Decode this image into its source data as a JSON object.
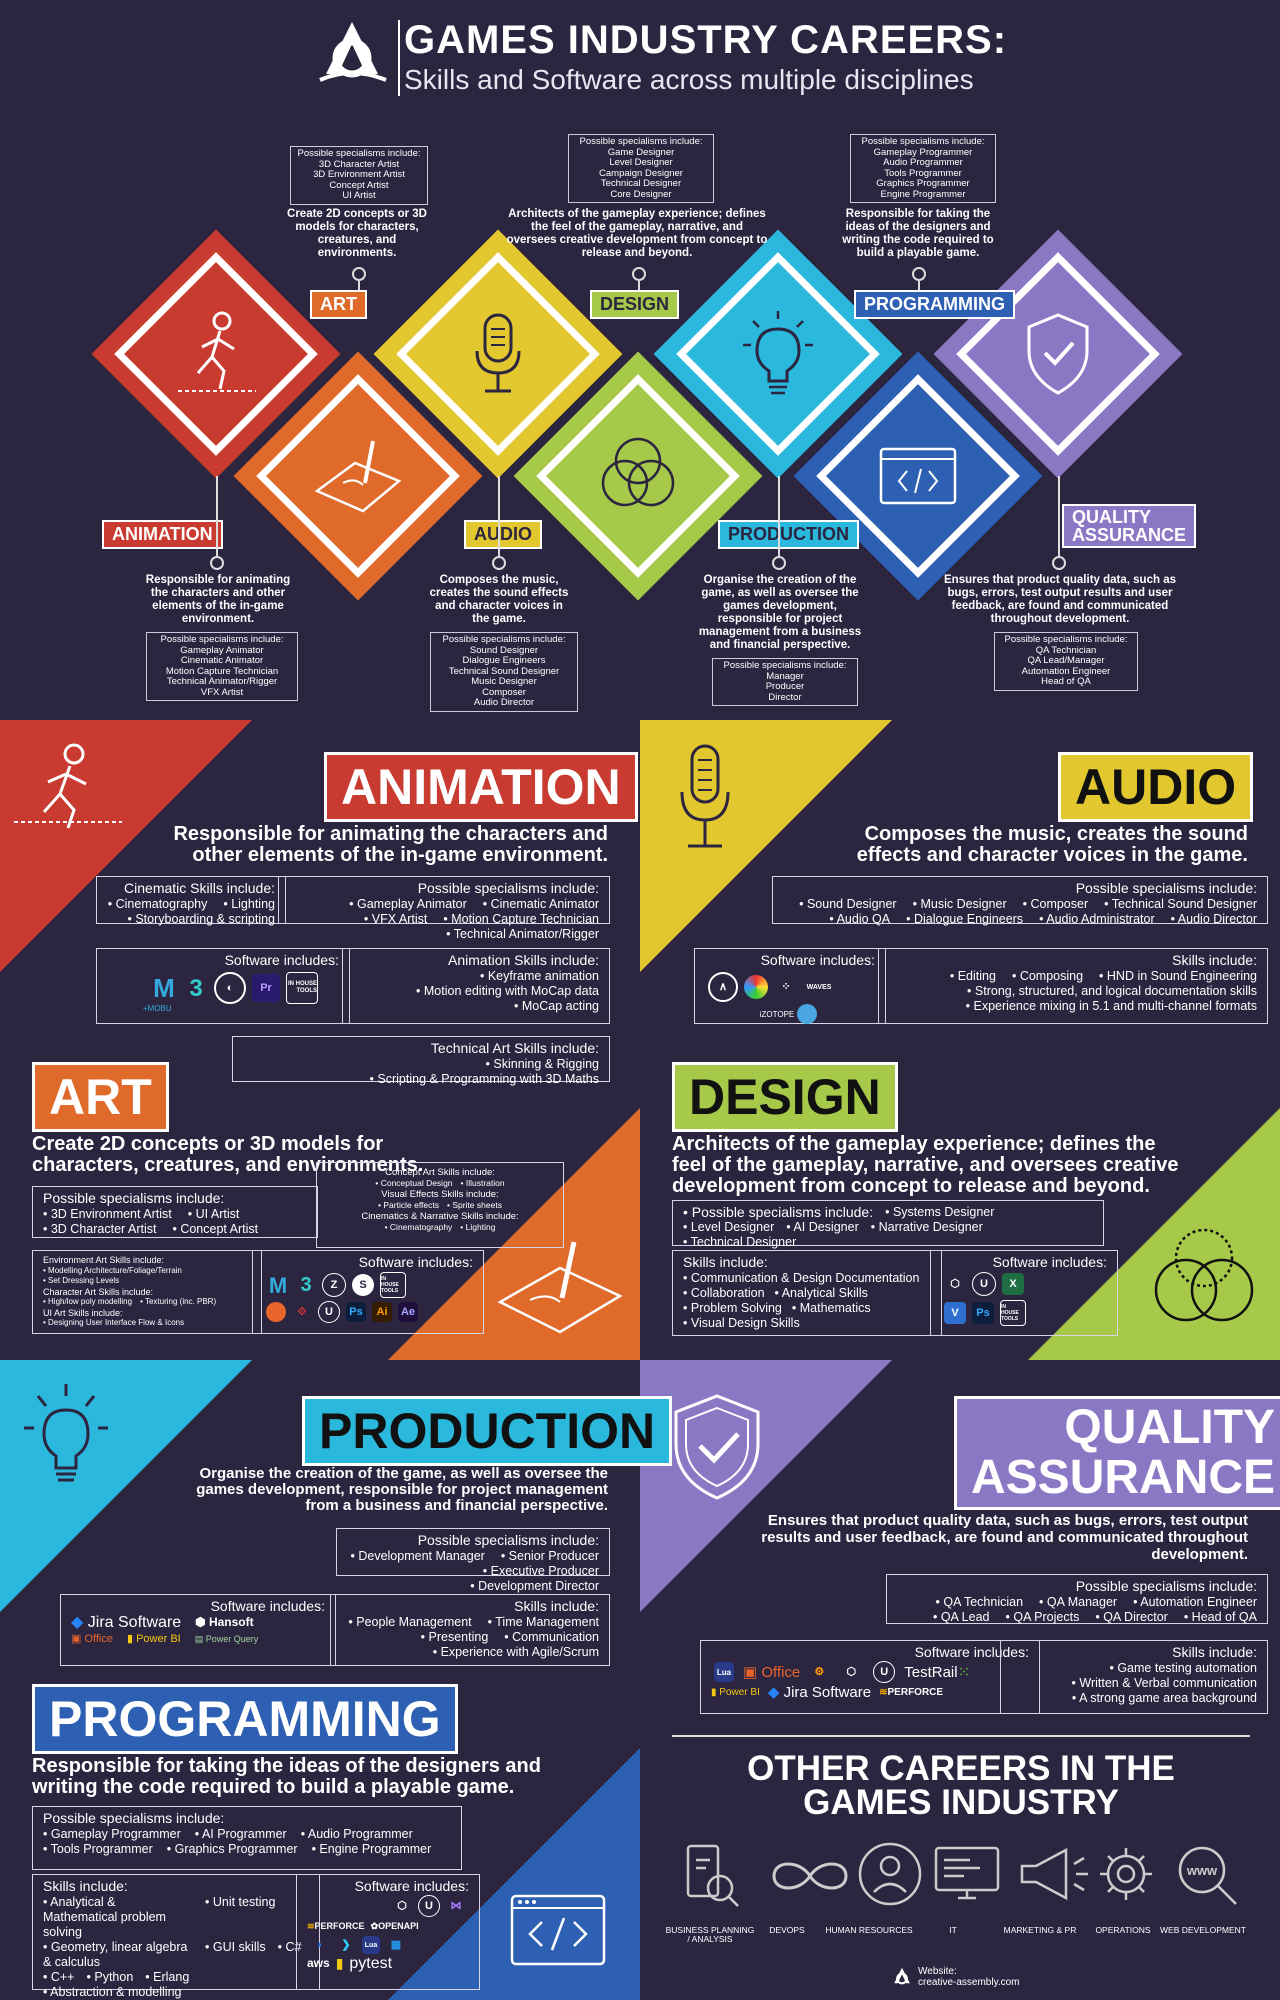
{
  "header": {
    "title": "GAMES INDUSTRY CAREERS:",
    "subtitle": "Skills and Software across multiple disciplines"
  },
  "colors": {
    "background": "#2c2540",
    "animation": "#c93a30",
    "art": "#e06a2a",
    "audio": "#e2c72f",
    "design": "#a6c94a",
    "production": "#2ab8dc",
    "programming": "#2d5fb2",
    "qa": "#8a78c4"
  },
  "top": {
    "art": {
      "label": "ART",
      "desc": "Create 2D concepts or 3D models for characters, creatures, and environments.",
      "spec_head": "Possible specialisms include:",
      "specs": [
        "3D Character Artist",
        "3D Environment Artist",
        "Concept Artist",
        "UI Artist"
      ]
    },
    "design": {
      "label": "DESIGN",
      "desc": "Architects of the gameplay experience; defines the feel of the gameplay, narrative, and oversees creative development from concept to release and beyond.",
      "spec_head": "Possible specialisms include:",
      "specs": [
        "Game Designer",
        "Level Designer",
        "Campaign Designer",
        "Technical Designer",
        "Core Designer"
      ]
    },
    "programming": {
      "label": "PROGRAMMING",
      "desc": "Responsible for taking the ideas of the designers and writing the code required to build a playable game.",
      "spec_head": "Possible specialisms include:",
      "specs": [
        "Gameplay Programmer",
        "Audio Programmer",
        "Tools Programmer",
        "Graphics Programmer",
        "Engine Programmer"
      ]
    },
    "animation": {
      "label": "ANIMATION",
      "desc": "Responsible for animating the characters and other elements of the in-game environment.",
      "spec_head": "Possible specialisms include:",
      "specs": [
        "Gameplay Animator",
        "Cinematic Animator",
        "Motion Capture Technician",
        "Technical Animator/Rigger",
        "VFX Artist"
      ]
    },
    "audio": {
      "label": "AUDIO",
      "desc": "Composes the music, creates the sound effects and character voices in the game.",
      "spec_head": "Possible specialisms include:",
      "specs": [
        "Sound Designer",
        "Dialogue Engineers",
        "Technical Sound Designer",
        "Music Designer",
        "Composer",
        "Audio Director"
      ]
    },
    "production": {
      "label": "PRODUCTION",
      "desc": "Organise the creation of the game, as well as oversee the games development, responsible for project management from a business and financial perspective.",
      "spec_head": "Possible specialisms include:",
      "specs": [
        "Manager",
        "Producer",
        "Director"
      ]
    },
    "qa": {
      "label1": "QUALITY",
      "label2": "ASSURANCE",
      "desc": "Ensures that product quality data, such as bugs, errors, test output results and user feedback, are found and communicated throughout development.",
      "spec_head": "Possible specialisms include:",
      "specs": [
        "QA Technician",
        "QA Lead/Manager",
        "Automation Engineer",
        "Head of QA"
      ]
    }
  },
  "animation": {
    "title": "ANIMATION",
    "lead": "Responsible for animating the characters and other elements of the in-game environment.",
    "cine_head": "Cinematic Skills include:",
    "cine": [
      "Cinematography",
      "Lighting",
      "Storyboarding & scripting"
    ],
    "spec_head": "Possible specialisms include:",
    "specs": [
      "Gameplay Animator",
      "Cinematic Animator",
      "VFX Artist",
      "Motion Capture Technician",
      "Technical Animator/Rigger"
    ],
    "sw_head": "Software includes:",
    "software": [
      "M",
      "3",
      "Pr",
      "IN HOUSE TOOLS"
    ],
    "sw_sub": "+MOBU",
    "anim_head": "Animation Skills include:",
    "anim": [
      "Keyframe animation",
      "Motion editing with MoCap data",
      "MoCap acting"
    ],
    "tech_head": "Technical Art Skills include:",
    "tech": [
      "Skinning & Rigging",
      "Scripting & Programming with 3D Maths"
    ]
  },
  "audio": {
    "title": "AUDIO",
    "lead": "Composes the music, creates the sound effects and character voices in the game.",
    "spec_head": "Possible specialisms include:",
    "specs": [
      "Sound Designer",
      "Music Designer",
      "Composer",
      "Technical Sound Designer",
      "Audio QA",
      "Dialogue Engineers",
      "Audio Administrator",
      "Audio Director"
    ],
    "sw_head": "Software includes:",
    "software": [
      "WAVES",
      "iZOTOPE"
    ],
    "skills_head": "Skills include:",
    "skills": [
      "Editing",
      "Composing",
      "HND in Sound Engineering",
      "Strong, structured, and logical documentation skills",
      "Experience mixing in 5.1 and multi-channel formats"
    ]
  },
  "art": {
    "title": "ART",
    "lead": "Create 2D concepts or 3D models for characters, creatures, and environments.",
    "spec_head": "Possible specialisms include:",
    "specs": [
      "3D Environment Artist",
      "UI Artist",
      "3D Character Artist",
      "Concept Artist"
    ],
    "concept_head": "Concept Art Skills include:",
    "concept": [
      "Conceptual Design",
      "Illustration"
    ],
    "vfx_head": "Visual Effects Skills include:",
    "vfx": [
      "Particle effects",
      "Sprite sheets"
    ],
    "cine_head": "Cinematics & Narrative Skills include:",
    "cine": [
      "Cinematography",
      "Lighting"
    ],
    "env_head": "Environment Art Skills include:",
    "env": [
      "Modelling Architecture/Foliage/Terrain",
      "Set Dressing Levels"
    ],
    "char_head": "Character Art Skills include:",
    "char": [
      "High/low poly modelling",
      "Texturing (inc. PBR)"
    ],
    "ui_head": "UI Art Skills include:",
    "ui": [
      "Designing User Interface Flow & Icons"
    ],
    "sw_head": "Software includes:",
    "software": [
      "M",
      "3",
      "Ps",
      "Ai",
      "Ae",
      "IN HOUSE TOOLS"
    ]
  },
  "design": {
    "title": "DESIGN",
    "lead": "Architects of the gameplay experience; defines the feel of the gameplay, narrative, and oversees creative development from concept to release and beyond.",
    "spec_head": "Possible specialisms include:",
    "specs": [
      "Systems Designer",
      "Level Designer",
      "AI Designer",
      "Narrative Designer",
      "Technical Designer"
    ],
    "skills_head": "Skills include:",
    "skills": [
      "Communication & Design Documentation",
      "Collaboration",
      "Analytical Skills",
      "Problem Solving",
      "Mathematics",
      "Visual Design Skills"
    ],
    "sw_head": "Software includes:",
    "software": [
      "U",
      "X",
      "V",
      "Ps",
      "IN HOUSE TOOLS"
    ]
  },
  "production": {
    "title": "PRODUCTION",
    "lead": "Organise the creation of the game, as well as oversee the games development, responsible for project management from a business and financial perspective.",
    "spec_head": "Possible specialisms include:",
    "specs": [
      "Development Manager",
      "Senior Producer",
      "Executive Producer",
      "Development Director"
    ],
    "sw_head": "Software includes:",
    "software": [
      "Jira Software",
      "Hansoft",
      "Office",
      "Power BI",
      "Power Query"
    ],
    "skills_head": "Skills include:",
    "skills": [
      "People Management",
      "Time Management",
      "Presenting",
      "Communication",
      "Experience with Agile/Scrum"
    ]
  },
  "qa": {
    "title1": "QUALITY",
    "title2": "ASSURANCE",
    "lead": "Ensures that product quality data, such as bugs, errors, test output results and user feedback, are found and communicated throughout development.",
    "spec_head": "Possible specialisms include:",
    "specs": [
      "QA Technician",
      "QA Manager",
      "Automation Engineer",
      "QA Lead",
      "QA Projects",
      "QA Director",
      "Head of QA"
    ],
    "sw_head": "Software includes:",
    "software": [
      "Office",
      "TestRail",
      "Power BI",
      "Jira Software",
      "PERFORCE"
    ],
    "skills_head": "Skills include:",
    "skills": [
      "Game testing automation",
      "Written & Verbal communication",
      "A strong game area background"
    ]
  },
  "programming": {
    "title": "PROGRAMMING",
    "lead": "Responsible for taking the ideas of the designers and writing the code required to build a playable game.",
    "spec_head": "Possible specialisms include:",
    "specs": [
      "Gameplay Programmer",
      "AI Programmer",
      "Audio Programmer",
      "Tools Programmer",
      "Graphics Programmer",
      "Engine Programmer"
    ],
    "skills_head": "Skills include:",
    "skills": [
      "Analytical & Mathematical problem solving",
      "Unit testing",
      "Geometry, linear algebra & calculus",
      "GUI skills",
      "C#",
      "C++",
      "Python",
      "Erlang",
      "Abstraction & modelling"
    ],
    "sw_head": "Software includes:",
    "software": [
      "PERFORCE",
      "OPENAPI",
      "aws",
      "pytest"
    ]
  },
  "other": {
    "title1": "OTHER CAREERS IN THE",
    "title2": "GAMES INDUSTRY",
    "items": [
      "BUSINESS PLANNING / ANALYSIS",
      "DEVOPS",
      "HUMAN RESOURCES",
      "IT",
      "MARKETING & PR",
      "OPERATIONS",
      "WEB DEVELOPMENT"
    ],
    "website_label": "Website:",
    "website": "creative-assembly.com"
  }
}
